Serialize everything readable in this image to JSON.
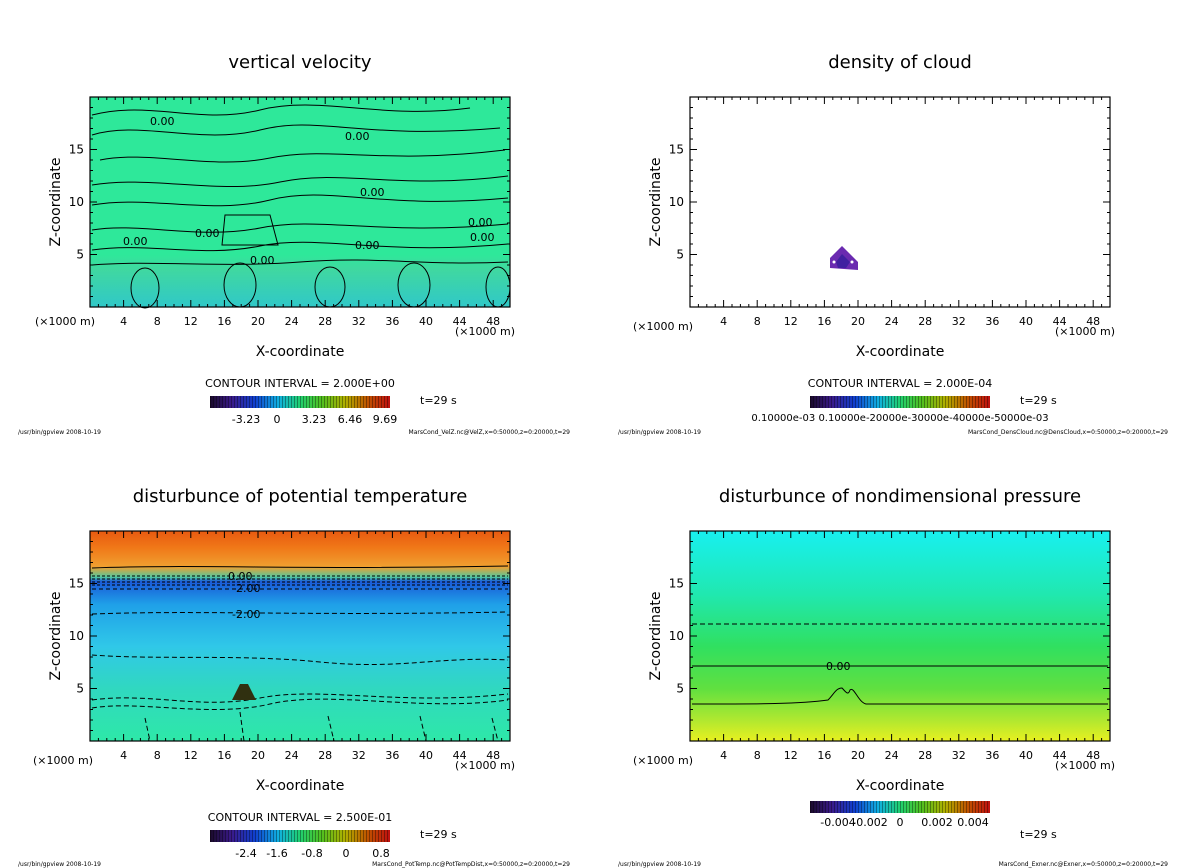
{
  "chart_data": [
    {
      "type": "heatmap",
      "title": "vertical velocity",
      "xlabel": "X-coordinate",
      "ylabel": "Z-coordinate",
      "x_unit_left": "(×1000 m)",
      "x_unit_right": "(×1000 m)",
      "xlim": [
        0,
        50
      ],
      "ylim": [
        0,
        20
      ],
      "xticks": [
        4,
        8,
        12,
        16,
        20,
        24,
        28,
        32,
        36,
        40,
        44,
        48
      ],
      "yticks": [
        5,
        10,
        15
      ],
      "contour_interval": "CONTOUR INTERVAL = 2.000E+00",
      "time": "t=29 s",
      "colorbar_ticks": [
        "-3.23",
        "0",
        "3.23",
        "6.46",
        "9.69"
      ],
      "contour_labels": [
        "0.00",
        "0.00",
        "0.00",
        "0.00",
        "0.00",
        "0.00",
        "0.00",
        "0.00",
        "0.00"
      ],
      "footer_left": "/usr/bin/gpview   2008-10-19",
      "footer_right": "MarsCond_VelZ.nc@VelZ,x=0:50000,z=0:20000,t=29"
    },
    {
      "type": "heatmap",
      "title": "density of cloud",
      "xlabel": "X-coordinate",
      "ylabel": "Z-coordinate",
      "x_unit_left": "(×1000 m)",
      "x_unit_right": "(×1000 m)",
      "xlim": [
        0,
        50
      ],
      "ylim": [
        0,
        20
      ],
      "xticks": [
        4,
        8,
        12,
        16,
        20,
        24,
        28,
        32,
        36,
        40,
        44,
        48
      ],
      "yticks": [
        5,
        10,
        15
      ],
      "contour_interval": "CONTOUR INTERVAL = 2.000E-04",
      "time": "t=29 s",
      "colorbar_ticks": [
        "0.10000e-03 0.10000e-20000e-30000e-40000e-50000e-03"
      ],
      "footer_left": "/usr/bin/gpview   2008-10-19",
      "footer_right": "MarsCond_DensCloud.nc@DensCloud,x=0:50000,z=0:20000,t=29"
    },
    {
      "type": "heatmap",
      "title": "disturbunce of potential temperature",
      "xlabel": "X-coordinate",
      "ylabel": "Z-coordinate",
      "x_unit_left": "(×1000 m)",
      "x_unit_right": "(×1000 m)",
      "xlim": [
        0,
        50
      ],
      "ylim": [
        0,
        20
      ],
      "xticks": [
        4,
        8,
        12,
        16,
        20,
        24,
        28,
        32,
        36,
        40,
        44,
        48
      ],
      "yticks": [
        5,
        10,
        15
      ],
      "contour_interval": "CONTOUR INTERVAL = 2.500E-01",
      "time": "t=29 s",
      "colorbar_ticks": [
        "-2.4",
        "-1.6",
        "-0.8",
        "0",
        "0.8"
      ],
      "contour_labels": [
        "0.00",
        "-2.00",
        "-2.00"
      ],
      "footer_left": "/usr/bin/gpview   2008-10-19",
      "footer_right": "MarsCond_PotTemp.nc@PotTempDist,x=0:50000,z=0:20000,t=29"
    },
    {
      "type": "heatmap",
      "title": "disturbunce of nondimensional pressure",
      "xlabel": "X-coordinate",
      "ylabel": "Z-coordinate",
      "x_unit_left": "(×1000 m)",
      "x_unit_right": "(×1000 m)",
      "xlim": [
        0,
        50
      ],
      "ylim": [
        0,
        20
      ],
      "xticks": [
        4,
        8,
        12,
        16,
        20,
        24,
        28,
        32,
        36,
        40,
        44,
        48
      ],
      "yticks": [
        5,
        10,
        15
      ],
      "contour_interval": "",
      "time": "t=29 s",
      "colorbar_ticks": [
        "-0.004",
        "-0.002",
        "0",
        "0.002",
        "0.004"
      ],
      "contour_labels": [
        "0.00"
      ],
      "footer_left": "/usr/bin/gpview   2008-10-19",
      "footer_right": "MarsCond_Exner.nc@Exner,x=0:50000,z=0:20000,t=29"
    }
  ]
}
